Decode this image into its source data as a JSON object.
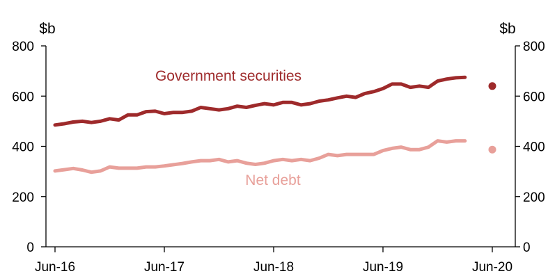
{
  "chart_data": {
    "type": "line",
    "left_unit": "$b",
    "right_unit": "$b",
    "ylim": [
      0,
      800
    ],
    "y_ticks": [
      0,
      200,
      400,
      600,
      800
    ],
    "left_tick_labels": [
      "0",
      "200",
      "400",
      "600",
      "800"
    ],
    "right_tick_labels": [
      "0",
      "200",
      "400",
      "600",
      "800"
    ],
    "x_tick_labels": [
      "Jun-16",
      "Jun-17",
      "Jun-18",
      "Jun-19",
      "Jun-20"
    ],
    "x_range": [
      "Jun-16",
      "Jun-20"
    ],
    "series": [
      {
        "name": "Government securities",
        "color": "#9E2A2B",
        "x": [
          "Jun-16",
          "Jul-16",
          "Aug-16",
          "Sep-16",
          "Oct-16",
          "Nov-16",
          "Dec-16",
          "Jan-17",
          "Feb-17",
          "Mar-17",
          "Apr-17",
          "May-17",
          "Jun-17",
          "Jul-17",
          "Aug-17",
          "Sep-17",
          "Oct-17",
          "Nov-17",
          "Dec-17",
          "Jan-18",
          "Feb-18",
          "Mar-18",
          "Apr-18",
          "May-18",
          "Jun-18",
          "Jul-18",
          "Aug-18",
          "Sep-18",
          "Oct-18",
          "Nov-18",
          "Dec-18",
          "Jan-19",
          "Feb-19",
          "Mar-19",
          "Apr-19",
          "May-19",
          "Jun-19",
          "Jul-19",
          "Aug-19",
          "Sep-19",
          "Oct-19",
          "Nov-19",
          "Dec-19",
          "Jan-20",
          "Feb-20",
          "Mar-20"
        ],
        "values": [
          485,
          490,
          497,
          500,
          495,
          500,
          510,
          505,
          525,
          525,
          538,
          540,
          530,
          535,
          535,
          540,
          555,
          550,
          545,
          550,
          560,
          555,
          563,
          570,
          565,
          575,
          575,
          565,
          570,
          580,
          585,
          593,
          600,
          595,
          610,
          618,
          630,
          648,
          648,
          635,
          640,
          635,
          660,
          668,
          673,
          675
        ]
      },
      {
        "name": "Net debt",
        "color": "#E8A09A",
        "x": [
          "Jun-16",
          "Jul-16",
          "Aug-16",
          "Sep-16",
          "Oct-16",
          "Nov-16",
          "Dec-16",
          "Jan-17",
          "Feb-17",
          "Mar-17",
          "Apr-17",
          "May-17",
          "Jun-17",
          "Jul-17",
          "Aug-17",
          "Sep-17",
          "Oct-17",
          "Nov-17",
          "Dec-17",
          "Jan-18",
          "Feb-18",
          "Mar-18",
          "Apr-18",
          "May-18",
          "Jun-18",
          "Jul-18",
          "Aug-18",
          "Sep-18",
          "Oct-18",
          "Nov-18",
          "Dec-18",
          "Jan-19",
          "Feb-19",
          "Mar-19",
          "Apr-19",
          "May-19",
          "Jun-19",
          "Jul-19",
          "Aug-19",
          "Sep-19",
          "Oct-19",
          "Nov-19",
          "Dec-19",
          "Jan-20",
          "Feb-20",
          "Mar-20"
        ],
        "values": [
          302,
          307,
          312,
          306,
          297,
          302,
          318,
          313,
          313,
          313,
          318,
          318,
          322,
          327,
          332,
          338,
          343,
          343,
          348,
          338,
          343,
          333,
          328,
          333,
          343,
          348,
          343,
          348,
          343,
          353,
          368,
          363,
          368,
          368,
          368,
          368,
          383,
          392,
          397,
          387,
          387,
          397,
          422,
          417,
          422,
          422
        ]
      }
    ],
    "projections": [
      {
        "series": "Government securities",
        "x": "Jun-20",
        "value": 640,
        "color": "#9E2A2B"
      },
      {
        "series": "Net debt",
        "x": "Jun-20",
        "value": 387,
        "color": "#E8A09A"
      }
    ],
    "annotations": [
      {
        "text": "Government securities",
        "color": "#9E2A2B"
      },
      {
        "text": "Net debt",
        "color": "#E8A09A"
      }
    ],
    "grid": false,
    "legend": "none"
  }
}
